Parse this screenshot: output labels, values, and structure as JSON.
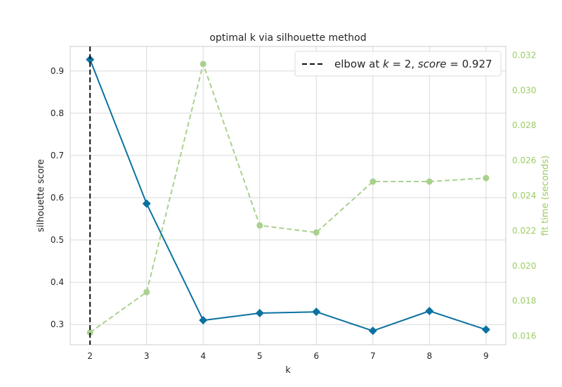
{
  "chart_data": {
    "type": "line",
    "title": "optimal k via silhouette method",
    "xlabel": "k",
    "ylabel": "silhouette score",
    "y2label": "fit time (seconds)",
    "x": [
      2,
      3,
      4,
      5,
      6,
      7,
      8,
      9
    ],
    "xlim": [
      1.65,
      9.35
    ],
    "ylim": [
      0.252,
      0.958
    ],
    "y2lim": [
      0.0155,
      0.0325
    ],
    "x_ticks": [
      "2",
      "3",
      "4",
      "5",
      "6",
      "7",
      "8",
      "9"
    ],
    "y_ticks": [
      0.3,
      0.4,
      0.5,
      0.6,
      0.7,
      0.8,
      0.9
    ],
    "y_tick_labels": [
      "0.3",
      "0.4",
      "0.5",
      "0.6",
      "0.7",
      "0.8",
      "0.9"
    ],
    "y2_ticks": [
      0.016,
      0.018,
      0.02,
      0.022,
      0.024,
      0.026,
      0.028,
      0.03,
      0.032
    ],
    "y2_tick_labels": [
      "0.016",
      "0.018",
      "0.020",
      "0.022",
      "0.024",
      "0.026",
      "0.028",
      "0.030",
      "0.032"
    ],
    "grid": true,
    "legend_position": "top-right",
    "series": [
      {
        "key": "silhouette",
        "axis": "left",
        "color": "#0b72a0",
        "marker": "diamond",
        "line": "solid",
        "values": [
          0.927,
          0.586,
          0.31,
          0.327,
          0.33,
          0.285,
          0.332,
          0.288
        ]
      },
      {
        "key": "fit_time",
        "axis": "right",
        "color": "#a9d18e",
        "marker": "circle",
        "line": "dashed",
        "values": [
          0.0162,
          0.0185,
          0.0315,
          0.0223,
          0.0219,
          0.0248,
          0.0248,
          0.025
        ]
      }
    ],
    "elbow": {
      "k": 2,
      "score": 0.927,
      "color": "#111111",
      "legend_prefix": "elbow at ",
      "legend_k_var": "k",
      "legend_mid": " = 2, ",
      "legend_score_var": "score",
      "legend_suffix": " = 0.927"
    }
  }
}
